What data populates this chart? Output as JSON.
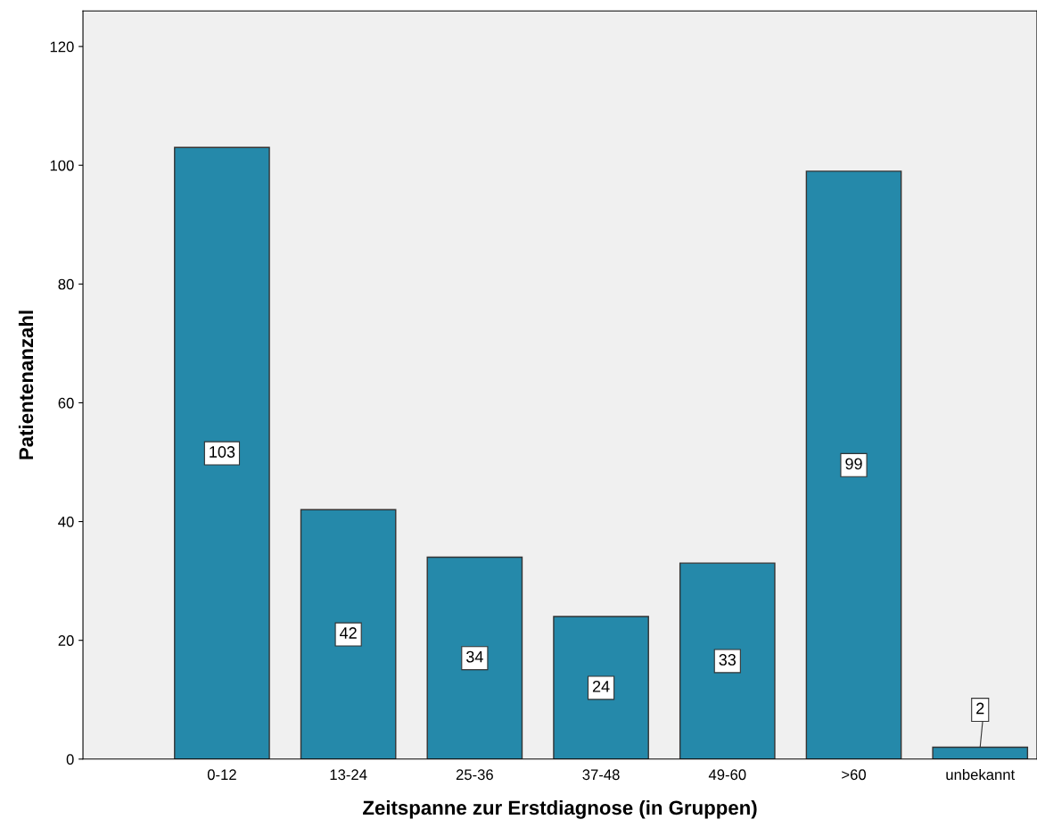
{
  "chart_data": {
    "type": "bar",
    "xlabel": "Zeitspanne zur Erstdiagnose (in Gruppen)",
    "ylabel": "Patientenanzahl",
    "categories": [
      "0-12",
      "13-24",
      "25-36",
      "37-48",
      "49-60",
      ">60",
      "unbekannt"
    ],
    "values": [
      103,
      42,
      34,
      24,
      33,
      99,
      2
    ],
    "color": "#2589aa",
    "ylim": [
      0,
      126
    ],
    "yticks": [
      0,
      20,
      40,
      60,
      80,
      100,
      120
    ],
    "grid": false,
    "data_labels": true
  }
}
